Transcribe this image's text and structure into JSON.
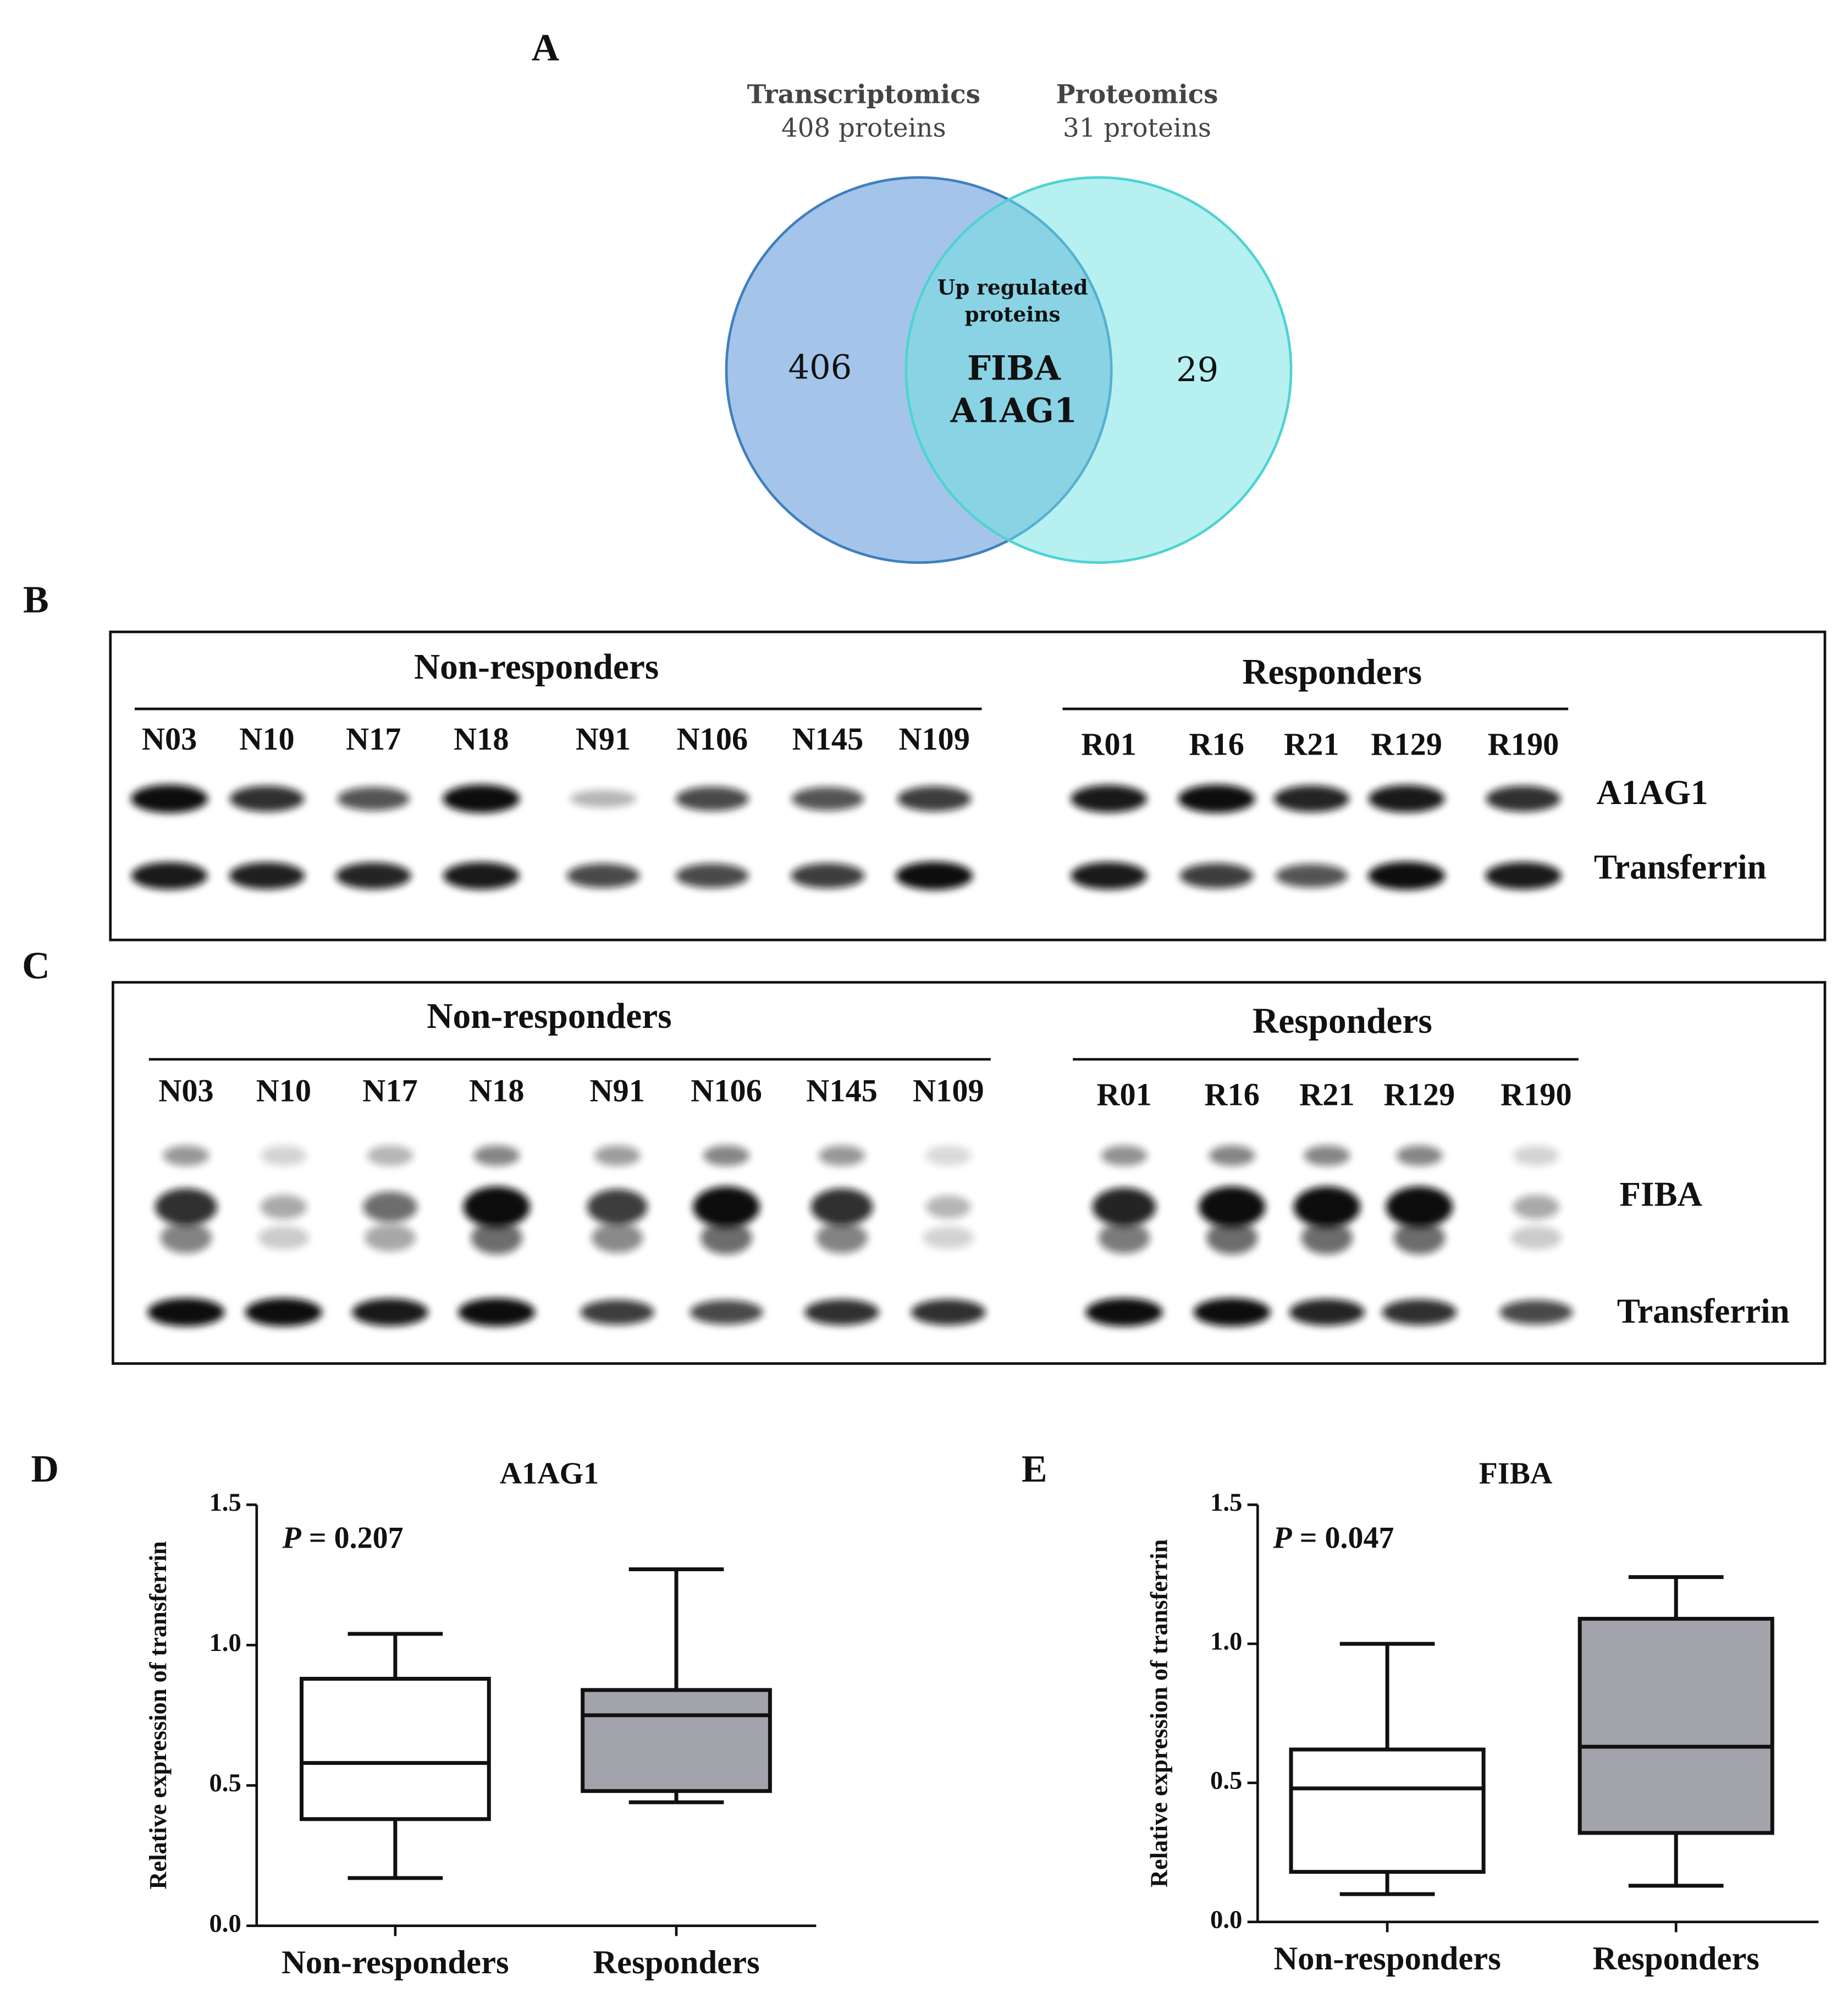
{
  "venn": {
    "letter": "A",
    "left": {
      "title": "Transcriptomics",
      "subtitle": "408 proteins",
      "count": "406"
    },
    "right": {
      "title": "Proteomics",
      "subtitle": "31 proteins",
      "count": "29"
    },
    "overlap": {
      "caption": [
        "Up regulated",
        "proteins"
      ],
      "items": [
        "FIBA",
        "A1AG1"
      ]
    }
  },
  "blots": [
    {
      "letter": "B",
      "groups": [
        {
          "name": "Non-responders",
          "lanes": [
            "N03",
            "N10",
            "N17",
            "N18",
            "N91",
            "N106",
            "N145",
            "N109"
          ]
        },
        {
          "name": "Responders",
          "lanes": [
            "R01",
            "R16",
            "R21",
            "R129",
            "R190"
          ]
        }
      ],
      "rows": [
        "A1AG1",
        "Transferrin"
      ]
    },
    {
      "letter": "C",
      "groups": [
        {
          "name": "Non-responders",
          "lanes": [
            "N03",
            "N10",
            "N17",
            "N18",
            "N91",
            "N106",
            "N145",
            "N109"
          ]
        },
        {
          "name": "Responders",
          "lanes": [
            "R01",
            "R16",
            "R21",
            "R129",
            "R190"
          ]
        }
      ],
      "rows": [
        "FIBA",
        "Transferrin"
      ]
    }
  ],
  "chart_data": [
    {
      "type": "box",
      "letter": "D",
      "title": "A1AG1",
      "annotation": [
        "P",
        "= 0.207"
      ],
      "ylabel": "Relative expression of transferrin",
      "categories": [
        "Non-responders",
        "Responders"
      ],
      "boxes": [
        {
          "min": 0.17,
          "q1": 0.38,
          "median": 0.58,
          "q3": 0.88,
          "max": 1.04,
          "color": "#ffffff"
        },
        {
          "min": 0.44,
          "q1": 0.48,
          "median": 0.75,
          "q3": 0.84,
          "max": 1.27,
          "color": "#a3a3ab"
        }
      ],
      "ylim": [
        0,
        1.5
      ],
      "yticks": [
        {
          "value": 0,
          "label": "0.0"
        },
        {
          "value": 0.5,
          "label": "0.5"
        },
        {
          "value": 1,
          "label": "1.0"
        },
        {
          "value": 1.5,
          "label": "1.5"
        }
      ]
    },
    {
      "type": "box",
      "letter": "E",
      "title": "FIBA",
      "annotation": [
        "P",
        "= 0.047"
      ],
      "ylabel": "Relative expression of transferrin",
      "categories": [
        "Non-responders",
        "Responders"
      ],
      "boxes": [
        {
          "min": 0.1,
          "q1": 0.18,
          "median": 0.48,
          "q3": 0.62,
          "max": 1.0,
          "color": "#ffffff"
        },
        {
          "min": 0.13,
          "q1": 0.32,
          "median": 0.63,
          "q3": 1.09,
          "max": 1.24,
          "color": "#a3a3ab"
        }
      ],
      "ylim": [
        0,
        1.5
      ],
      "yticks": [
        {
          "value": 0,
          "label": "0.0"
        },
        {
          "value": 0.5,
          "label": "0.5"
        },
        {
          "value": 1,
          "label": "1.0"
        },
        {
          "value": 1.5,
          "label": "1.5"
        }
      ]
    }
  ]
}
